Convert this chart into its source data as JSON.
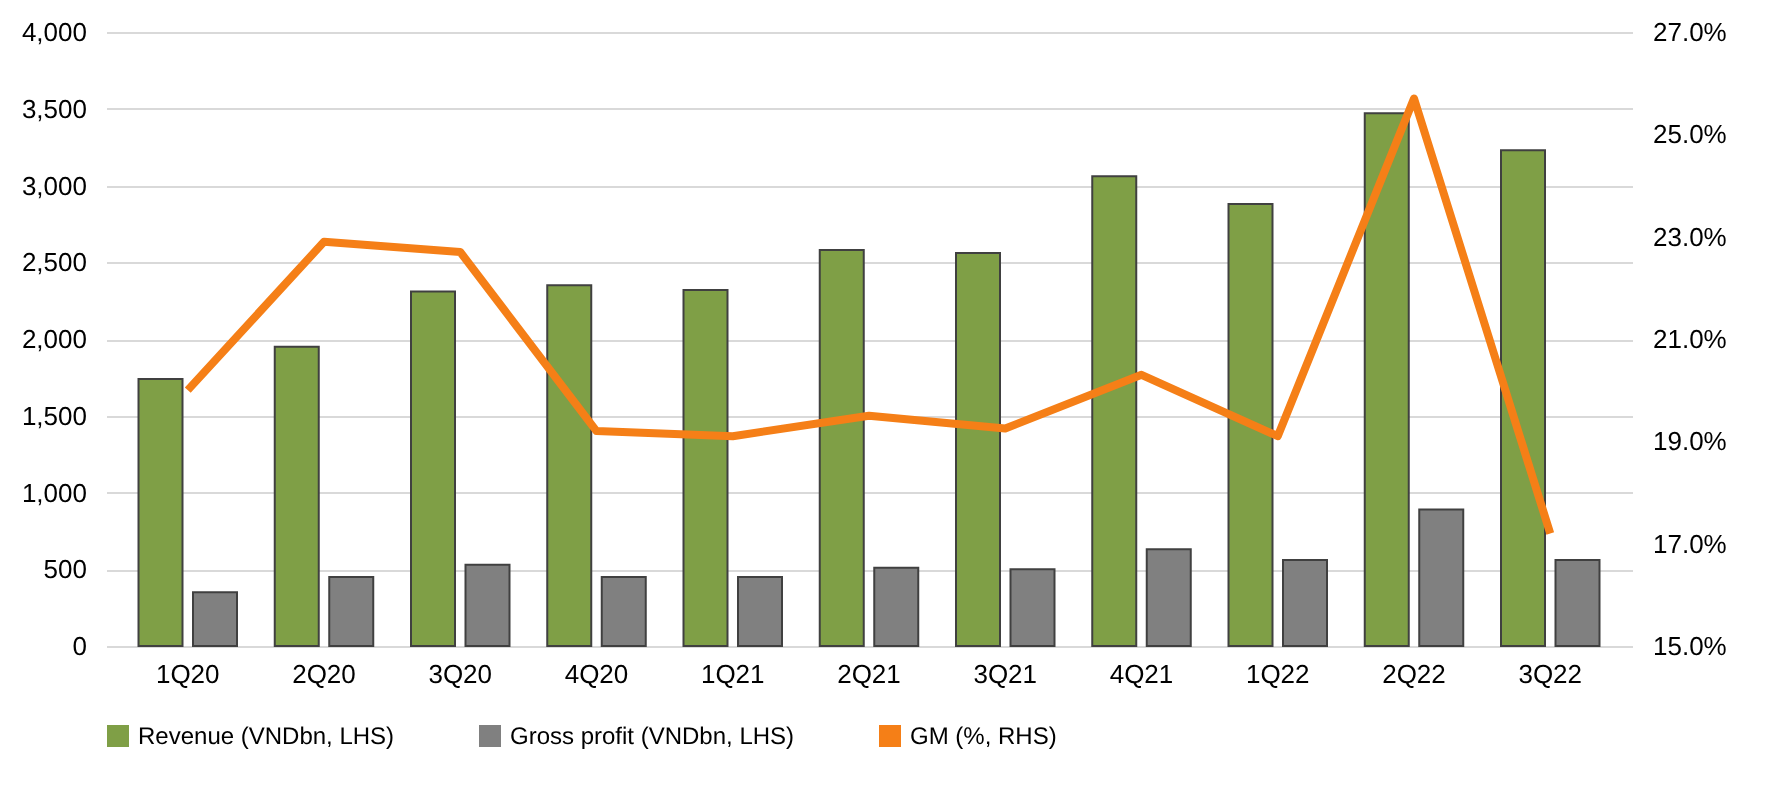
{
  "chart_data": {
    "type": "bar",
    "categories": [
      "1Q20",
      "2Q20",
      "3Q20",
      "4Q20",
      "1Q21",
      "2Q21",
      "3Q21",
      "4Q21",
      "1Q22",
      "2Q22",
      "3Q22"
    ],
    "series": [
      {
        "name": "Revenue (VNDbn, LHS)",
        "color": "#7f9f46",
        "values": [
          1740,
          1950,
          2310,
          2350,
          2320,
          2580,
          2560,
          3060,
          2880,
          3470,
          3230
        ]
      },
      {
        "name": "Gross profit (VNDbn, LHS)",
        "color": "#808080",
        "values": [
          350,
          450,
          530,
          450,
          450,
          510,
          500,
          630,
          560,
          890,
          560
        ]
      },
      {
        "name": "GM (%, RHS)",
        "color": "#f57f17",
        "type": "line",
        "axis": "y2",
        "values": [
          20.0,
          22.9,
          22.7,
          19.2,
          19.1,
          19.5,
          19.25,
          20.3,
          19.1,
          25.7,
          17.2
        ]
      }
    ],
    "ylim": [
      0,
      4000
    ],
    "yticks": [
      {
        "value": 0,
        "label": "0"
      },
      {
        "value": 500,
        "label": "500"
      },
      {
        "value": 1000,
        "label": "1,000"
      },
      {
        "value": 1500,
        "label": "1,500"
      },
      {
        "value": 2000,
        "label": "2,000"
      },
      {
        "value": 2500,
        "label": "2,500"
      },
      {
        "value": 3000,
        "label": "3,000"
      },
      {
        "value": 3500,
        "label": "3,500"
      },
      {
        "value": 4000,
        "label": "4,000"
      }
    ],
    "y2lim": [
      15,
      27
    ],
    "y2ticks": [
      {
        "value": 15,
        "label": "15.0%"
      },
      {
        "value": 17,
        "label": "17.0%"
      },
      {
        "value": 19,
        "label": "19.0%"
      },
      {
        "value": 21,
        "label": "21.0%"
      },
      {
        "value": 23,
        "label": "23.0%"
      },
      {
        "value": 25,
        "label": "25.0%"
      },
      {
        "value": 27,
        "label": "27.0%"
      }
    ],
    "grid": "y",
    "legend": "bottom",
    "marker": "none",
    "line_style": "solid"
  }
}
